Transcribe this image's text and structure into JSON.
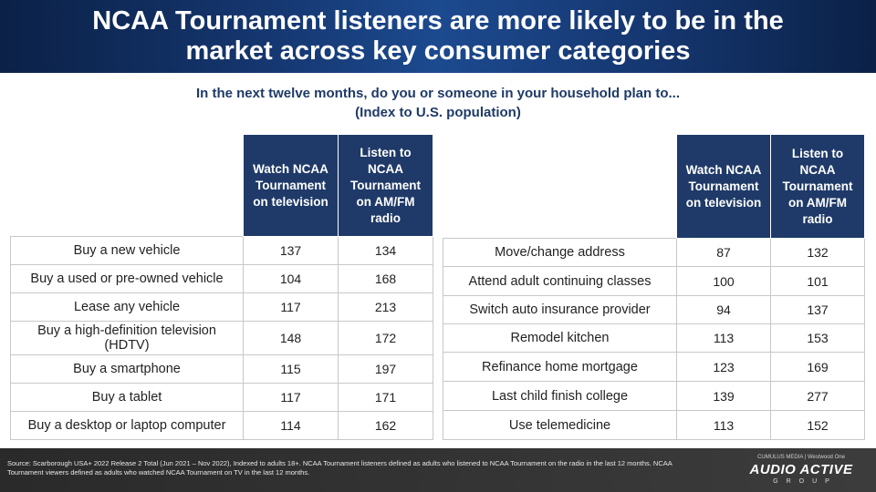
{
  "header": {
    "title": "NCAA Tournament listeners are more likely to be in the\nmarket across key consumer categories"
  },
  "subtitle": {
    "line1": "In the next twelve months, do you or someone in your household plan to...",
    "line2": "(Index to U.S. population)"
  },
  "columns": {
    "tv": "Watch NCAA Tournament on television",
    "radio": "Listen to NCAA Tournament on AM/FM radio"
  },
  "left_table": [
    {
      "label": "Buy a new vehicle",
      "tv": "137",
      "radio": "134"
    },
    {
      "label": "Buy a used or pre-owned vehicle",
      "tv": "104",
      "radio": "168"
    },
    {
      "label": "Lease any vehicle",
      "tv": "117",
      "radio": "213"
    },
    {
      "label": "Buy a high-definition television (HDTV)",
      "tv": "148",
      "radio": "172"
    },
    {
      "label": "Buy a smartphone",
      "tv": "115",
      "radio": "197"
    },
    {
      "label": "Buy a tablet",
      "tv": "117",
      "radio": "171"
    },
    {
      "label": "Buy a desktop or laptop computer",
      "tv": "114",
      "radio": "162"
    }
  ],
  "right_table": [
    {
      "label": "Move/change address",
      "tv": "87",
      "radio": "132"
    },
    {
      "label": "Attend adult continuing classes",
      "tv": "100",
      "radio": "101"
    },
    {
      "label": "Switch auto insurance provider",
      "tv": "94",
      "radio": "137"
    },
    {
      "label": "Remodel kitchen",
      "tv": "113",
      "radio": "153"
    },
    {
      "label": "Refinance home mortgage",
      "tv": "123",
      "radio": "169"
    },
    {
      "label": "Last child finish college",
      "tv": "139",
      "radio": "277"
    },
    {
      "label": "Use telemedicine",
      "tv": "113",
      "radio": "152"
    }
  ],
  "footer": {
    "source": "Source: Scarborough USA+ 2022 Release 2 Total (Jun 2021 – Nov 2022), Indexed to adults 18+. NCAA Tournament listeners defined as adults who listened to NCAA Tournament on the radio in the last 12 months. NCAA Tournament viewers defined as adults who watched NCAA Tournament on TV in the last 12 months.",
    "brand_top": "CUMULUS MEDIA | Westwood One",
    "brand_main": "AUDIO ACTIVE",
    "brand_sub": "GROUP"
  },
  "colors": {
    "header_bg": "#0b2147",
    "column_header_bg": "#1f3a68",
    "subtitle_text": "#1f3a68"
  }
}
